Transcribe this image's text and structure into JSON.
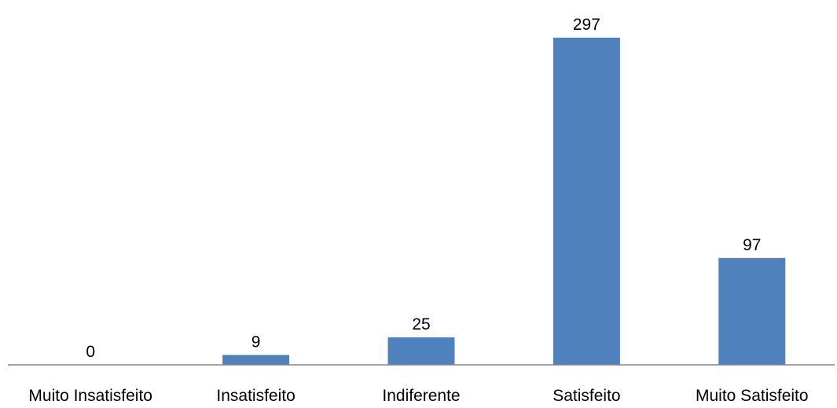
{
  "chart_data": {
    "type": "bar",
    "categories": [
      "Muito Insatisfeito",
      "Insatisfeito",
      "Indiferente",
      "Satisfeito",
      "Muito Satisfeito"
    ],
    "values": [
      0,
      9,
      25,
      297,
      97
    ],
    "data_labels": [
      "0",
      "9",
      "25",
      "297",
      "97"
    ],
    "title": "",
    "xlabel": "",
    "ylabel": "",
    "ylim": [
      0,
      297
    ],
    "grid": false,
    "legend": "none",
    "bar_color": "#4F81BD",
    "axis_color": "#868686"
  }
}
